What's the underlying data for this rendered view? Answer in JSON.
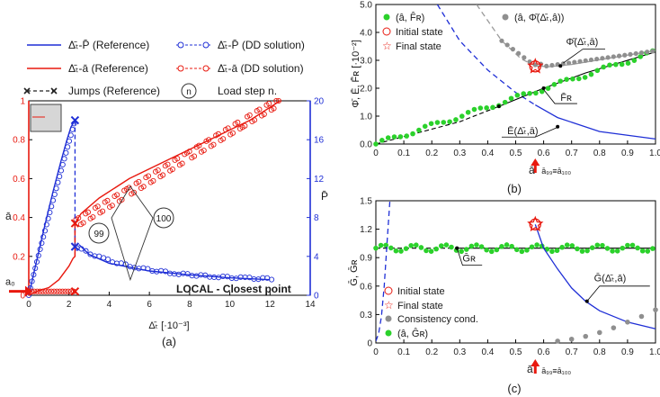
{
  "colors": {
    "blue": "#1f2fd6",
    "red": "#e8190f",
    "green": "#2bd12b",
    "gray": "#8f8f8f",
    "dark": "#1a1a1a"
  },
  "legend_a": {
    "items": [
      {
        "label": "Δ̄ₜ-P̄ (Reference)",
        "style": "blue-line"
      },
      {
        "label": "Δ̄ₜ-P̄ (DD solution)",
        "style": "blue-circle"
      },
      {
        "label": "Δ̄ₜ-ā (Reference)",
        "style": "red-line"
      },
      {
        "label": "Δ̄ₜ-ā (DD solution)",
        "style": "red-circle"
      },
      {
        "label": "Jumps (Reference)",
        "style": "jump"
      },
      {
        "label": "Load step n.",
        "style": "n-circle",
        "symbol": "n"
      }
    ]
  },
  "panel_a_extra": {
    "a0_label": "a₀",
    "step99": "99",
    "step100": "100",
    "local_label": "LOCAL - Closest point",
    "caption": "(a)"
  },
  "panel_b_extra": {
    "annotations": [
      "Φ̄(Δ̄ₜ,ā)",
      "F̄ʀ",
      "Ē(Δ̄ₜ,ā)"
    ],
    "arrow_label": "ā₉₉≡ā₁₀₀",
    "caption": "(b)"
  },
  "panel_c_extra": {
    "annotations": [
      "Ḡʀ",
      "Ḡ(Δ̄ₜ,ā)"
    ],
    "arrow_label": "ā₉₉≡ā₁₀₀",
    "caption": "(c)"
  },
  "chart_data": [
    {
      "id": "a",
      "type": "line",
      "xlabel": "Δ̄ₜ [·10⁻³]",
      "ylabel": "ā",
      "y2label": "P̄",
      "xlim": [
        0,
        14
      ],
      "ylim": [
        0,
        1
      ],
      "y2lim": [
        0,
        20
      ],
      "xticks": [
        "0",
        "2",
        "4",
        "6",
        "8",
        "10",
        "12",
        "14"
      ],
      "yticks": [
        "0",
        "0.2",
        "0.4",
        "0.6",
        "0.8",
        "1"
      ],
      "y2ticks": [
        "0",
        "4",
        "8",
        "12",
        "16",
        "20"
      ],
      "series": [
        {
          "name": "Δ̄ₜ-P̄ (Reference)",
          "axis": "right",
          "x": [
            0,
            0.4,
            0.8,
            1.2,
            1.6,
            1.9,
            2.1,
            2.3,
            2.5,
            3,
            4,
            6,
            8,
            10,
            12
          ],
          "y": [
            0,
            3.6,
            7.2,
            10.6,
            13.8,
            16,
            17.3,
            18,
            5.2,
            4.2,
            3.3,
            2.5,
            2.1,
            1.8,
            1.6
          ]
        },
        {
          "name": "Δ̄ₜ-ā (Reference)",
          "axis": "left",
          "x": [
            0,
            0.4,
            1,
            1.5,
            2,
            2.2,
            2.3,
            2.3,
            2.6,
            3.5,
            5,
            7,
            9,
            11,
            12.5
          ],
          "y": [
            0,
            0.02,
            0.04,
            0.08,
            0.15,
            0.19,
            0.2,
            0.37,
            0.42,
            0.5,
            0.6,
            0.7,
            0.8,
            0.9,
            1
          ]
        },
        {
          "name": "Jumps (Reference)",
          "x": [
            2.3,
            2.3,
            2.3
          ],
          "y": [
            0.9,
            0.25,
            0.02
          ]
        }
      ]
    },
    {
      "id": "b",
      "type": "scatter",
      "xlabel": "ā",
      "ylabel": "Φ̄, Ē, F̄ʀ [·10⁻²]",
      "xlim": [
        0,
        1
      ],
      "ylim": [
        0,
        5
      ],
      "xticks": [
        "0",
        "0.1",
        "0.2",
        "0.3",
        "0.4",
        "0.5",
        "0.6",
        "0.7",
        "0.8",
        "0.9",
        "1.0"
      ],
      "yticks": [
        "0.0",
        "1.0",
        "2.0",
        "3.0",
        "4.0",
        "5.0"
      ],
      "legend": [
        "(â, F̂ʀ)",
        "(â, Φ̄(Δ̄ₜ,â))",
        "Initial state",
        "Final state"
      ],
      "F_R_line": {
        "x": [
          0,
          0.3,
          0.44,
          0.6,
          0.75,
          1.0
        ],
        "y": [
          0,
          0.8,
          1.35,
          2.0,
          2.55,
          3.3
        ]
      },
      "E_curve": {
        "x": [
          0.22,
          0.3,
          0.4,
          0.5,
          0.57,
          0.65,
          0.8,
          1.0
        ],
        "y": [
          5.0,
          3.7,
          2.65,
          1.85,
          1.4,
          0.95,
          0.45,
          0.18
        ]
      },
      "Phi_curve": {
        "x": [
          0.36,
          0.45,
          0.52,
          0.57,
          0.62,
          0.7,
          0.85,
          1.0
        ],
        "y": [
          5.0,
          3.7,
          3.05,
          2.8,
          2.77,
          2.85,
          3.1,
          3.35
        ]
      },
      "initial_state": {
        "x": 0.57,
        "y": 2.78
      },
      "final_state": {
        "x": 0.57,
        "y": 2.78
      },
      "arrow_x": 0.57
    },
    {
      "id": "c",
      "type": "scatter",
      "xlabel": "ā",
      "ylabel": "Ḡ, Ḡʀ",
      "xlim": [
        0,
        1
      ],
      "ylim": [
        0,
        1.5
      ],
      "xticks": [
        "0",
        "0.1",
        "0.2",
        "0.3",
        "0.4",
        "0.5",
        "0.6",
        "0.7",
        "0.8",
        "0.9",
        "1.0"
      ],
      "yticks": [
        "0",
        "0.3",
        "0.6",
        "0.9",
        "1.2",
        "1.5"
      ],
      "legend": [
        "Initial state",
        "Final state",
        "Consistency cond.",
        "(â, Ĝʀ)"
      ],
      "G_R_level": 1.0,
      "G_curve_left": {
        "x": [
          0.0,
          0.01,
          0.02,
          0.03,
          0.04,
          0.05
        ],
        "y": [
          0.02,
          0.1,
          0.28,
          0.6,
          1.05,
          1.5
        ]
      },
      "G_curve_right": {
        "x": [
          0.57,
          0.6,
          0.65,
          0.7,
          0.75,
          0.8,
          0.9,
          1.0
        ],
        "y": [
          1.25,
          1.0,
          0.78,
          0.58,
          0.44,
          0.34,
          0.22,
          0.15
        ]
      },
      "consistency_points": {
        "x": [
          0.65,
          0.7,
          0.75,
          0.8,
          0.85,
          0.9,
          0.95,
          1.0
        ],
        "y": [
          0.02,
          0.04,
          0.07,
          0.11,
          0.16,
          0.22,
          0.28,
          0.35
        ]
      },
      "initial_state": {
        "x": 0.57,
        "y": 1.25
      },
      "final_state": {
        "x": 0.57,
        "y": 1.25
      },
      "arrow_x": 0.57
    }
  ]
}
